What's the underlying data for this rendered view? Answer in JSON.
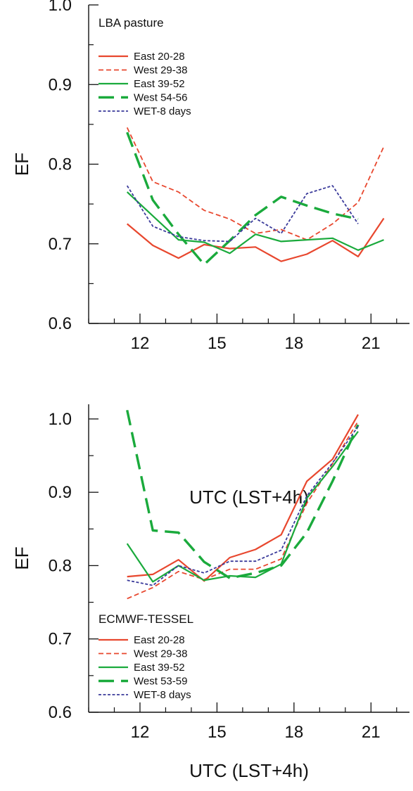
{
  "chart_data": [
    {
      "type": "line",
      "title": "LBA pasture",
      "xlabel": "UTC (LST+4h)",
      "ylabel": "EF",
      "xlim": [
        10.0,
        22.5
      ],
      "ylim": [
        0.6,
        1.0
      ],
      "xticks": [
        12,
        15,
        18,
        21
      ],
      "xtick_labels": [
        "12",
        "15",
        "18",
        "21"
      ],
      "yticks": [
        0.6,
        0.7,
        0.8,
        0.9,
        1.0
      ],
      "ytick_labels": [
        "0.6",
        "0.7",
        "0.8",
        "0.9",
        "1.0"
      ],
      "legend_position": "top-left",
      "grid": false,
      "series": [
        {
          "name": "East 20-28",
          "color": "#e8472e",
          "style": "solid",
          "x": [
            11.5,
            12.5,
            13.5,
            14.5,
            15.5,
            16.5,
            17.5,
            18.5,
            19.5,
            20.5,
            21.5
          ],
          "y": [
            0.725,
            0.698,
            0.682,
            0.699,
            0.694,
            0.696,
            0.678,
            0.687,
            0.704,
            0.684,
            0.732
          ]
        },
        {
          "name": "West 29-38",
          "color": "#e8472e",
          "style": "dashed",
          "x": [
            11.5,
            12.5,
            13.5,
            14.5,
            15.5,
            16.5,
            17.5,
            18.5,
            19.5,
            20.5,
            21.5
          ],
          "y": [
            0.846,
            0.778,
            0.765,
            0.742,
            0.731,
            0.713,
            0.718,
            0.705,
            0.725,
            0.752,
            0.822
          ]
        },
        {
          "name": "East 39-52",
          "color": "#1aaa3c",
          "style": "solid",
          "x": [
            11.5,
            12.5,
            13.5,
            14.5,
            15.5,
            16.5,
            17.5,
            18.5,
            19.5,
            20.5,
            21.5
          ],
          "y": [
            0.765,
            0.735,
            0.705,
            0.702,
            0.688,
            0.712,
            0.703,
            0.705,
            0.707,
            0.692,
            0.705
          ]
        },
        {
          "name": "West 54-56",
          "color": "#1aaa3c",
          "style": "longdash",
          "x": [
            11.5,
            12.5,
            13.5,
            14.5,
            15.5,
            16.5,
            17.5,
            18.5,
            19.5,
            20.5
          ],
          "y": [
            0.84,
            0.755,
            0.712,
            0.674,
            0.704,
            0.736,
            0.759,
            0.748,
            0.738,
            0.731
          ]
        },
        {
          "name": "WET-8 days",
          "color": "#3a3a9a",
          "style": "dotted",
          "x": [
            11.5,
            12.5,
            13.5,
            14.5,
            15.5,
            16.5,
            17.5,
            18.5,
            19.5,
            20.5
          ],
          "y": [
            0.773,
            0.722,
            0.709,
            0.704,
            0.703,
            0.732,
            0.713,
            0.763,
            0.773,
            0.725
          ]
        }
      ]
    },
    {
      "type": "line",
      "title": "ECMWF-TESSEL",
      "xlabel": "UTC (LST+4h)",
      "ylabel": "EF",
      "xlim": [
        10.0,
        22.5
      ],
      "ylim": [
        0.6,
        1.02
      ],
      "xticks": [
        12,
        15,
        18,
        21
      ],
      "xtick_labels": [
        "12",
        "15",
        "18",
        "21"
      ],
      "yticks": [
        0.6,
        0.7,
        0.8,
        0.9,
        1.0
      ],
      "ytick_labels": [
        "0.6",
        "0.7",
        "0.8",
        "0.9",
        "1.0"
      ],
      "legend_position": "bottom-left",
      "grid": false,
      "series": [
        {
          "name": "East 20-28",
          "color": "#e8472e",
          "style": "solid",
          "x": [
            11.5,
            12.5,
            13.5,
            14.5,
            15.5,
            16.5,
            17.5,
            18.5,
            19.5,
            20.5
          ],
          "y": [
            0.785,
            0.788,
            0.808,
            0.779,
            0.811,
            0.822,
            0.842,
            0.915,
            0.945,
            1.006
          ]
        },
        {
          "name": "West 29-38",
          "color": "#e8472e",
          "style": "dashed",
          "x": [
            11.5,
            12.5,
            13.5,
            14.5,
            15.5,
            16.5,
            17.5,
            18.5,
            19.5,
            20.5
          ],
          "y": [
            0.755,
            0.77,
            0.792,
            0.781,
            0.795,
            0.795,
            0.809,
            0.885,
            0.939,
            0.997
          ]
        },
        {
          "name": "East 39-52",
          "color": "#1aaa3c",
          "style": "solid",
          "x": [
            11.5,
            12.5,
            13.5,
            14.5,
            15.5,
            16.5,
            17.5,
            18.5,
            19.5,
            20.5
          ],
          "y": [
            0.83,
            0.778,
            0.8,
            0.78,
            0.786,
            0.784,
            0.802,
            0.892,
            0.935,
            0.983
          ]
        },
        {
          "name": "West 53-59",
          "color": "#1aaa3c",
          "style": "longdash",
          "x": [
            11.5,
            12.5,
            13.5,
            14.5,
            15.5,
            16.5,
            17.5,
            18.5,
            19.5,
            20.5
          ],
          "y": [
            1.012,
            0.848,
            0.845,
            0.805,
            0.783,
            0.79,
            0.8,
            0.845,
            0.915,
            0.992
          ]
        },
        {
          "name": "WET-8 days",
          "color": "#3a3a9a",
          "style": "dotted",
          "x": [
            11.5,
            12.5,
            13.5,
            14.5,
            15.5,
            16.5,
            17.5,
            18.5,
            19.5,
            20.5
          ],
          "y": [
            0.78,
            0.773,
            0.8,
            0.79,
            0.806,
            0.806,
            0.821,
            0.895,
            0.94,
            0.99
          ]
        }
      ]
    }
  ]
}
